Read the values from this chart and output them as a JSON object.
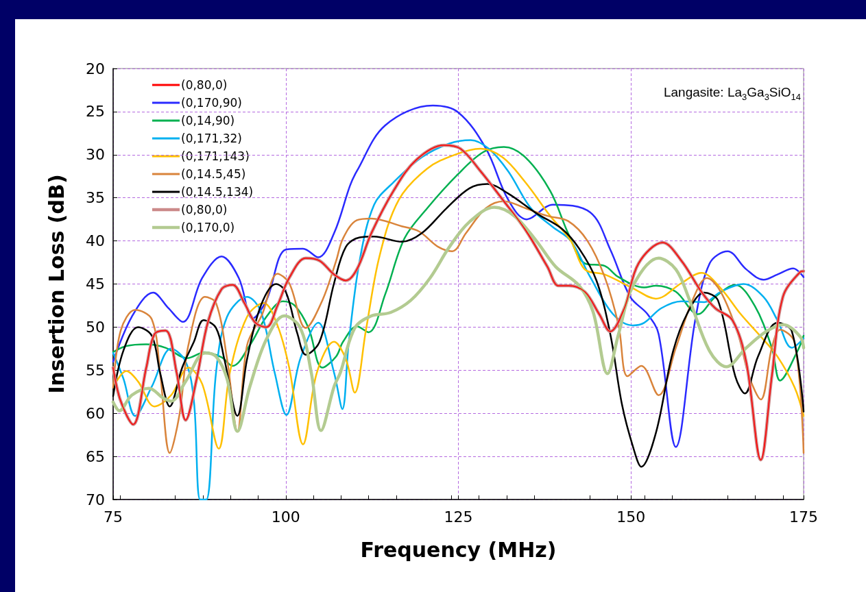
{
  "chart_data": {
    "type": "line",
    "xlabel": "Frequency (MHz)",
    "ylabel": "Insertion Loss (dB)",
    "xlim": [
      75,
      175
    ],
    "xticks": [
      75,
      100,
      125,
      150,
      175
    ],
    "ylim": [
      70,
      20
    ],
    "yticks": [
      20,
      25,
      30,
      35,
      40,
      45,
      50,
      55,
      60,
      65,
      70
    ],
    "grid": true,
    "legend": "top left",
    "marker": "none",
    "line_style": "solid",
    "annotations": [
      "Langasite: La$_{3}$Ga$_{3}$SiO$_{14}$"
    ],
    "series": [
      {
        "name": "(0,80,0)",
        "color": "#ff0000",
        "x": [
          75,
          76.1,
          77.9,
          79.8,
          81,
          82.6,
          84.2,
          85.5,
          87.1,
          88.7,
          90.7,
          92.3,
          94,
          95.6,
          97.2,
          98.8,
          100.5,
          102.9,
          104.9,
          107,
          108.7,
          110.3,
          112.4,
          115.6,
          118.9,
          122.9,
          125.3,
          128.2,
          131.4,
          134.7,
          137.9,
          139.5,
          141,
          143.3,
          145.4,
          147,
          149,
          151.1,
          154.6,
          157.3,
          160.2,
          162.2,
          164.7,
          166.7,
          168.8,
          170.4,
          172,
          174.5,
          175
        ],
        "values": [
          54.7,
          58.6,
          61.3,
          54.7,
          50.8,
          50.4,
          55.3,
          60.8,
          56,
          49.5,
          45.6,
          45.1,
          47.2,
          49.5,
          50,
          47.5,
          44.3,
          42,
          42.3,
          43.9,
          44.6,
          43.3,
          39.1,
          34.2,
          30.6,
          28.9,
          29.3,
          31.9,
          35.2,
          38.7,
          43,
          45.2,
          45.2,
          45.9,
          48.5,
          50.5,
          47.9,
          42.6,
          40.2,
          42.3,
          45.9,
          47.8,
          49.2,
          54.1,
          65.4,
          55.7,
          46.5,
          43.6,
          43.5
        ]
      },
      {
        "name": "(0,170,90)",
        "color": "#2a2aff",
        "x": [
          75,
          77.7,
          80.8,
          83,
          85.1,
          87.9,
          90.7,
          93.2,
          95.2,
          97.2,
          100,
          102.5,
          104.7,
          107,
          109.3,
          110.3,
          114.4,
          121.3,
          125,
          129,
          132.2,
          134.9,
          138.7,
          144.1,
          147,
          149.9,
          152.4,
          154,
          156.5,
          159.3,
          161.4,
          164,
          166.7,
          169.2,
          171.2,
          173.5,
          175
        ],
        "values": [
          54,
          48.8,
          46,
          47.8,
          49.4,
          44.3,
          41.8,
          44.3,
          49,
          46.9,
          41,
          40.9,
          41.9,
          39.1,
          33.6,
          31.9,
          26.6,
          24.3,
          25.1,
          29.3,
          35.2,
          37.5,
          35.8,
          36.7,
          41,
          46.5,
          48.5,
          50.8,
          63.9,
          49.2,
          42.6,
          41.2,
          43.3,
          44.5,
          43.9,
          43.2,
          44.2
        ]
      },
      {
        "name": "(0,14,90)",
        "color": "#00b050",
        "x": [
          75,
          76.9,
          79.8,
          82.6,
          85.7,
          88.3,
          90.7,
          92.3,
          94.8,
          97.2,
          99.6,
          101.3,
          103.3,
          105.3,
          107.3,
          108.3,
          110.3,
          112,
          114.4,
          117.2,
          120.5,
          124.9,
          128.6,
          131.6,
          134.7,
          138.3,
          141,
          143.3,
          146.2,
          148.2,
          151.9,
          153.6,
          156.5,
          159.7,
          162.2,
          165.1,
          167.9,
          170.4,
          171.6,
          174.1,
          175
        ],
        "values": [
          52.9,
          52.2,
          52,
          52.4,
          53.6,
          52.9,
          53.5,
          54.5,
          52.1,
          48.8,
          47,
          47.5,
          50.1,
          54.7,
          53.4,
          51.7,
          49.9,
          50.6,
          46.2,
          39.7,
          36.2,
          32.3,
          29.7,
          29.1,
          30.3,
          34.2,
          39.3,
          42.6,
          42.9,
          44.2,
          45.4,
          45.2,
          45.9,
          48.5,
          46.5,
          45.1,
          47.5,
          52.4,
          56.2,
          52.8,
          51
        ]
      },
      {
        "name": "(0,171,32)",
        "color": "#00b0f0",
        "x": [
          75,
          76.5,
          78.2,
          80.6,
          83.4,
          85.5,
          86.7,
          87.6,
          88.5,
          89.9,
          91.5,
          94.4,
          96.4,
          98.4,
          100.1,
          102.1,
          104.7,
          107,
          108.2,
          109.1,
          110.7,
          112.8,
          115.6,
          119.7,
          123.7,
          126.8,
          129.4,
          132.2,
          135.5,
          138.7,
          141.3,
          144.1,
          147.4,
          150.3,
          151.9,
          154.4,
          157.3,
          160.6,
          163,
          166.3,
          169.2,
          171.2,
          173.3,
          175
        ],
        "values": [
          53,
          56,
          60.3,
          56.9,
          52.5,
          54,
          58.6,
          70,
          70,
          55.3,
          48.8,
          46.5,
          48.2,
          55.3,
          60.2,
          53.7,
          49.5,
          55.3,
          59.5,
          52,
          42.3,
          35.8,
          33.2,
          30.3,
          28.7,
          28.3,
          29.3,
          31.9,
          36.2,
          38.4,
          40,
          44.2,
          48.5,
          49.8,
          49.5,
          47.8,
          47,
          47.1,
          45.9,
          45,
          46.5,
          49.2,
          52.4,
          51.3
        ]
      },
      {
        "name": "(0,171,143)",
        "color": "#ffc000",
        "x": [
          75,
          76.9,
          78.6,
          81,
          83.4,
          85.9,
          87.9,
          90.3,
          91.9,
          94.4,
          96.8,
          98.8,
          100.5,
          102.5,
          104.5,
          107,
          108.7,
          110,
          111.6,
          113.6,
          116.4,
          120.5,
          124.5,
          128.2,
          131.4,
          134.7,
          138.3,
          141.3,
          143.3,
          146.2,
          150.3,
          153.6,
          157.3,
          160.2,
          163,
          165.9,
          168.8,
          171.2,
          173.7,
          175
        ],
        "values": [
          57,
          55.1,
          56.3,
          59.2,
          57.9,
          54.7,
          56.6,
          64.1,
          55.3,
          48.8,
          47.2,
          49.8,
          54.7,
          63.6,
          55.3,
          51.7,
          53.7,
          57.6,
          50.4,
          41.7,
          35.2,
          31.6,
          30,
          29.3,
          30.3,
          33.2,
          37.1,
          40,
          43.3,
          43.9,
          45.5,
          46.7,
          44.9,
          43.7,
          45.5,
          48.5,
          51.1,
          53.4,
          57,
          60.3
        ]
      },
      {
        "name": "(0,14.5,45)",
        "color": "#d9843b",
        "x": [
          75,
          76.1,
          78.2,
          80.6,
          81.8,
          83.2,
          84.6,
          85.9,
          88.3,
          89.9,
          91.5,
          93,
          94.4,
          96.6,
          98.8,
          100.5,
          102.9,
          105.3,
          107.3,
          108.3,
          110.3,
          112.4,
          116.8,
          119.3,
          122.1,
          124.1,
          126.1,
          129,
          131.6,
          134.7,
          137.9,
          140.9,
          143.7,
          146.2,
          148.2,
          149.5,
          151.5,
          154,
          156.5,
          158.9,
          161,
          163,
          165.5,
          167.1,
          168.8,
          170.4,
          171.6,
          173.7,
          175
        ],
        "values": [
          57,
          50.4,
          48,
          49.1,
          55.3,
          64.6,
          60.2,
          52.1,
          46.5,
          47.2,
          53.7,
          62.1,
          52.1,
          48.5,
          43.8,
          44.9,
          50.1,
          46.9,
          42.3,
          39.7,
          37.6,
          37.4,
          38.3,
          38.9,
          40.7,
          41.2,
          39.1,
          36.2,
          35.4,
          36.2,
          37.1,
          37.7,
          40,
          44.2,
          49.8,
          55.7,
          54.5,
          57.9,
          52.4,
          46.9,
          44.3,
          45.9,
          50.8,
          55.7,
          58.4,
          52.4,
          50.3,
          51.8,
          64.6
        ]
      },
      {
        "name": "(0,14.5,134)",
        "color": "#000000",
        "x": [
          75,
          76.5,
          78.6,
          80.6,
          81.8,
          83.2,
          85,
          86.7,
          88.1,
          89.9,
          91.1,
          93,
          94.4,
          96.4,
          98.6,
          100,
          101.7,
          102.9,
          104.9,
          107,
          108.7,
          110.7,
          112.8,
          116.8,
          119.7,
          123.3,
          126.6,
          129.2,
          132.2,
          136.3,
          140,
          142.5,
          145,
          147,
          148.7,
          150.3,
          151.5,
          153.6,
          156,
          158.1,
          160.6,
          162.6,
          165.1,
          166.5,
          168.4,
          171.2,
          173.3,
          175
        ],
        "values": [
          58,
          52.7,
          50,
          51,
          55.3,
          59.2,
          54.7,
          51.7,
          49.2,
          50.1,
          53.7,
          60.3,
          53.7,
          47.5,
          45,
          45.9,
          50.8,
          53.2,
          51.7,
          44.9,
          40.7,
          39.6,
          39.5,
          40.1,
          39.1,
          36.2,
          33.9,
          33.4,
          34.5,
          36.8,
          38.6,
          40.9,
          44.6,
          50.8,
          59,
          63.9,
          66.2,
          62.3,
          53.1,
          48.5,
          46,
          46.9,
          55.7,
          57.7,
          53.4,
          49.5,
          50.5,
          59.8
        ]
      },
      {
        "name": "(0,80,0)",
        "color": "#cc8a8a",
        "x": [
          75,
          76.1,
          77.9,
          79.8,
          81,
          82.6,
          84.2,
          85.5,
          87.1,
          88.7,
          90.7,
          92.3,
          94,
          95.6,
          97.2,
          98.8,
          100.5,
          102.9,
          104.9,
          107,
          108.7,
          110.3,
          112.4,
          115.6,
          118.9,
          122.9,
          125.3,
          128.2,
          131.4,
          134.7,
          137.9,
          139.5,
          141,
          143.3,
          145.4,
          147,
          149,
          151.1,
          154.6,
          157.3,
          160.2,
          162.2,
          164.7,
          166.7,
          168.8,
          170.4,
          172,
          174.5,
          175
        ],
        "values": [
          54.7,
          58.6,
          61.3,
          54.7,
          50.8,
          50.4,
          55.3,
          60.8,
          56,
          49.5,
          45.6,
          45.1,
          47.2,
          49.5,
          50,
          47.5,
          44.3,
          42,
          42.3,
          43.9,
          44.6,
          43.3,
          39.1,
          34.2,
          30.6,
          28.9,
          29.3,
          31.9,
          35.2,
          38.7,
          43,
          45.2,
          45.2,
          45.9,
          48.5,
          50.5,
          47.9,
          42.6,
          40.2,
          42.3,
          45.9,
          47.8,
          49.2,
          54.1,
          65.4,
          55.7,
          46.5,
          43.6,
          43.5
        ]
      },
      {
        "name": "(0,170,0)",
        "color": "#b3cb91",
        "x": [
          75,
          75.9,
          77.7,
          80.2,
          82.2,
          83.4,
          85.5,
          88.3,
          89.9,
          91.5,
          93,
          94.8,
          97.2,
          99.8,
          102.1,
          103.7,
          105.1,
          107,
          107.9,
          110,
          112.4,
          115.2,
          118.1,
          120.9,
          123.7,
          126.6,
          130.2,
          133.1,
          136.3,
          139.1,
          142.5,
          144.5,
          146.6,
          148.2,
          150.3,
          154,
          156.5,
          158.5,
          161.4,
          163.8,
          166.7,
          169.6,
          172,
          174.5,
          175
        ],
        "values": [
          58.7,
          59.7,
          57.9,
          57.1,
          58.2,
          58.6,
          56.3,
          53,
          53.4,
          56,
          62.1,
          56.9,
          51.4,
          48.7,
          50.1,
          55.3,
          62,
          56.9,
          55.3,
          50.1,
          48.7,
          48.3,
          46.9,
          44.3,
          40.7,
          37.8,
          36.1,
          37.1,
          40,
          43,
          45.2,
          48.2,
          55.4,
          50.8,
          45.2,
          42,
          43.3,
          46.9,
          52.8,
          54.6,
          52.4,
          50.5,
          49.7,
          51.1,
          52.4
        ]
      }
    ]
  }
}
